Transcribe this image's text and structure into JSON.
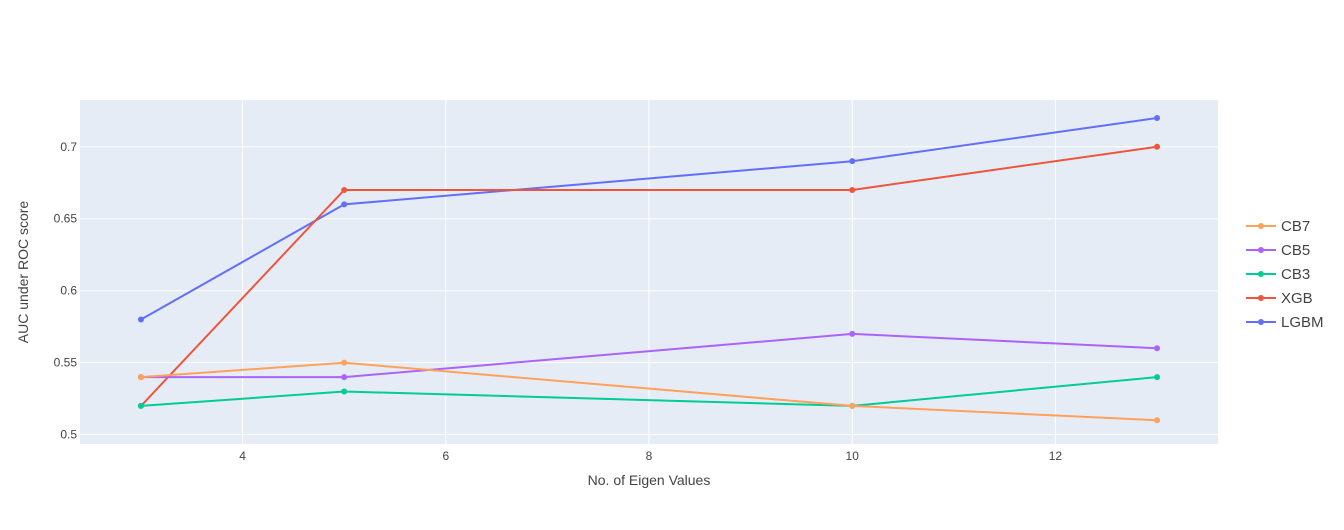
{
  "chart_data": {
    "type": "line",
    "title": "",
    "xlabel": "No. of Eigen Values",
    "ylabel": "AUC under ROC score",
    "x": [
      3,
      5,
      10,
      13
    ],
    "xlim": [
      2.4,
      13.6
    ],
    "ylim": [
      0.4935,
      0.7325
    ],
    "xticks": [
      4,
      6,
      8,
      10,
      12
    ],
    "yticks": [
      0.5,
      0.55,
      0.6,
      0.65,
      0.7
    ],
    "ytick_labels": [
      "0.5",
      "0.55",
      "0.6",
      "0.65",
      "0.7"
    ],
    "grid": true,
    "legend_position": "right",
    "series": [
      {
        "name": "CB7",
        "color": "#FFA15A",
        "values": [
          0.54,
          0.55,
          0.52,
          0.51
        ]
      },
      {
        "name": "CB5",
        "color": "#AB63FA",
        "values": [
          0.54,
          0.54,
          0.57,
          0.56
        ]
      },
      {
        "name": "CB3",
        "color": "#00CC96",
        "values": [
          0.52,
          0.53,
          0.52,
          0.54
        ]
      },
      {
        "name": "XGB",
        "color": "#EF553B",
        "values": [
          0.52,
          0.67,
          0.67,
          0.7
        ]
      },
      {
        "name": "LGBM",
        "color": "#636EFA",
        "values": [
          0.58,
          0.66,
          0.69,
          0.72
        ]
      }
    ],
    "plot_background": "#E5ECF6",
    "grid_color": "#FFFFFF"
  }
}
